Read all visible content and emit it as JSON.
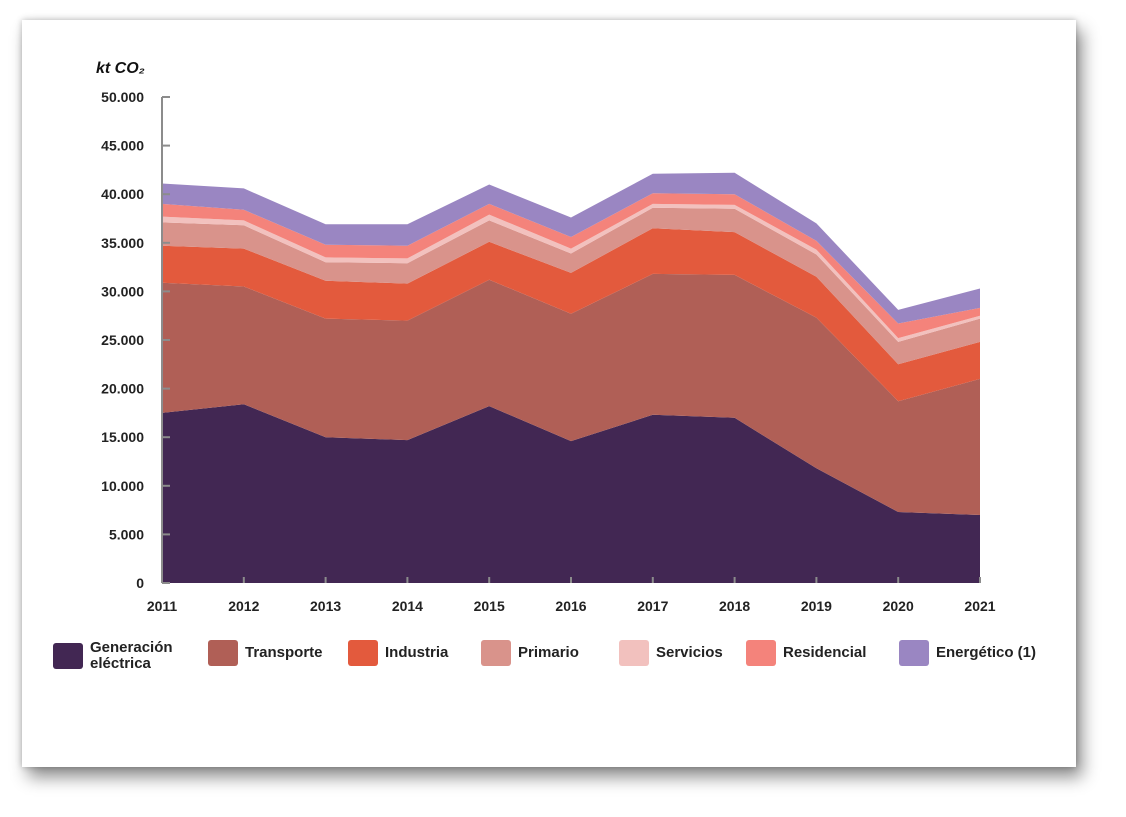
{
  "chart_data": {
    "type": "area",
    "stacked": true,
    "title": "",
    "ylabel": "kt CO₂",
    "xlabel": "",
    "x": [
      "2011",
      "2012",
      "2013",
      "2014",
      "2015",
      "2016",
      "2017",
      "2018",
      "2019",
      "2020",
      "2021"
    ],
    "ylim": [
      0,
      50000
    ],
    "yticks": [
      0,
      5000,
      10000,
      15000,
      20000,
      25000,
      30000,
      35000,
      40000,
      45000,
      50000
    ],
    "ytick_labels": [
      "0",
      "5.000",
      "10.000",
      "15.000",
      "20.000",
      "25.000",
      "30.000",
      "35.000",
      "40.000",
      "45.000",
      "50.000"
    ],
    "grid": false,
    "legend_position": "bottom",
    "series": [
      {
        "name": "Generación\neléctrica",
        "color": "#422753",
        "values": [
          17500,
          18400,
          15000,
          14700,
          18200,
          14600,
          17300,
          17000,
          11800,
          7300,
          7000
        ]
      },
      {
        "name": "Transporte",
        "color": "#b05f56",
        "values": [
          13400,
          12100,
          12200,
          12300,
          13000,
          13100,
          14500,
          14700,
          15500,
          11400,
          14000
        ]
      },
      {
        "name": "Industria",
        "color": "#e35a3d",
        "values": [
          3800,
          3900,
          3900,
          3800,
          3900,
          4200,
          4700,
          4400,
          4200,
          3800,
          3800
        ]
      },
      {
        "name": "Primario",
        "color": "#d9938b",
        "values": [
          2400,
          2400,
          1900,
          2100,
          2200,
          2000,
          2100,
          2400,
          2300,
          2300,
          2400
        ]
      },
      {
        "name": "Servicios",
        "color": "#f2c1be",
        "values": [
          600,
          500,
          500,
          500,
          600,
          500,
          400,
          400,
          500,
          400,
          300
        ]
      },
      {
        "name": "Residencial",
        "color": "#f4837b",
        "values": [
          1300,
          1100,
          1300,
          1300,
          1100,
          1200,
          1100,
          1100,
          900,
          1500,
          800
        ]
      },
      {
        "name": "Energético (1)",
        "color": "#9a86c2",
        "values": [
          2100,
          2200,
          2100,
          2200,
          2000,
          2000,
          2000,
          2200,
          1800,
          1400,
          2000
        ]
      }
    ]
  }
}
